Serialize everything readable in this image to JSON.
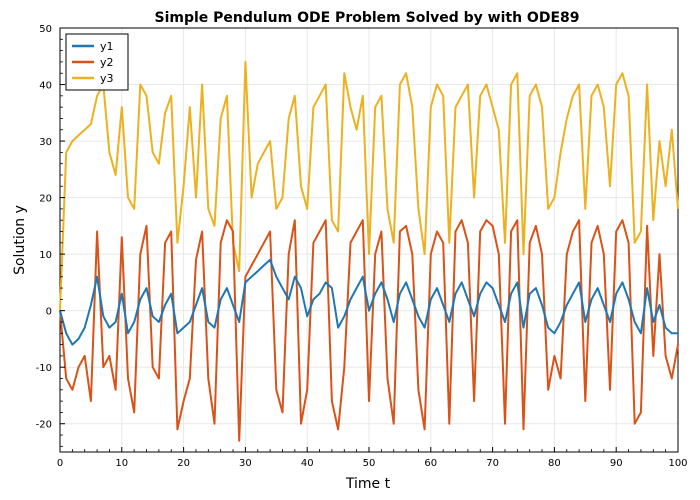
{
  "chart_data": {
    "type": "line",
    "title": "Simple Pendulum ODE Problem Solved by with ODE89",
    "xlabel": "Time t",
    "ylabel": "Solution y",
    "xlim": [
      0,
      100
    ],
    "ylim": [
      -25,
      50
    ],
    "xticks": [
      "0",
      "10",
      "20",
      "30",
      "40",
      "50",
      "60",
      "70",
      "80",
      "90",
      "100"
    ],
    "yticks": [
      "-20",
      "-10",
      "0",
      "10",
      "20",
      "30",
      "40",
      "50"
    ],
    "grid": true,
    "legend_position": "top-left",
    "colors": {
      "y1": "#1f77b4",
      "y2": "#d95319",
      "y3": "#edb120"
    },
    "series": [
      {
        "name": "y1",
        "x": [
          0,
          1,
          2,
          3,
          4,
          5,
          6,
          7,
          8,
          9,
          10,
          11,
          12,
          13,
          14,
          15,
          16,
          17,
          18,
          19,
          20,
          21,
          22,
          23,
          24,
          25,
          26,
          27,
          28,
          29,
          30,
          31,
          32,
          33,
          34,
          35,
          36,
          37,
          38,
          39,
          40,
          41,
          42,
          43,
          44,
          45,
          46,
          47,
          48,
          49,
          50,
          51,
          52,
          53,
          54,
          55,
          56,
          57,
          58,
          59,
          60,
          61,
          62,
          63,
          64,
          65,
          66,
          67,
          68,
          69,
          70,
          71,
          72,
          73,
          74,
          75,
          76,
          77,
          78,
          79,
          80,
          81,
          82,
          83,
          84,
          85,
          86,
          87,
          88,
          89,
          90,
          91,
          92,
          93,
          94,
          95,
          96,
          97,
          98,
          99,
          100
        ],
        "y": [
          0,
          -4,
          -6,
          -5,
          -3,
          1,
          6,
          -1,
          -3,
          -2,
          3,
          -4,
          -2,
          2,
          4,
          -1,
          -2,
          1,
          3,
          -4,
          -3,
          -2,
          1,
          4,
          -2,
          -3,
          2,
          4,
          1,
          -2,
          5,
          6,
          7,
          8,
          9,
          6,
          4,
          2,
          6,
          4,
          -1,
          2,
          3,
          5,
          4,
          -3,
          -1,
          2,
          4,
          6,
          0,
          3,
          5,
          2,
          -2,
          3,
          5,
          2,
          -1,
          -3,
          2,
          4,
          1,
          -2,
          3,
          5,
          2,
          -1,
          3,
          5,
          4,
          1,
          -2,
          3,
          5,
          -3,
          3,
          4,
          1,
          -3,
          -4,
          -2,
          1,
          3,
          5,
          -2,
          2,
          4,
          1,
          -2,
          3,
          5,
          2,
          -2,
          -4,
          4,
          -2,
          1,
          -3,
          -4,
          -4
        ]
      },
      {
        "name": "y2",
        "x": [
          0,
          1,
          2,
          3,
          4,
          5,
          6,
          7,
          8,
          9,
          10,
          11,
          12,
          13,
          14,
          15,
          16,
          17,
          18,
          19,
          20,
          21,
          22,
          23,
          24,
          25,
          26,
          27,
          28,
          29,
          30,
          31,
          32,
          33,
          34,
          35,
          36,
          37,
          38,
          39,
          40,
          41,
          42,
          43,
          44,
          45,
          46,
          47,
          48,
          49,
          50,
          51,
          52,
          53,
          54,
          55,
          56,
          57,
          58,
          59,
          60,
          61,
          62,
          63,
          64,
          65,
          66,
          67,
          68,
          69,
          70,
          71,
          72,
          73,
          74,
          75,
          76,
          77,
          78,
          79,
          80,
          81,
          82,
          83,
          84,
          85,
          86,
          87,
          88,
          89,
          90,
          91,
          92,
          93,
          94,
          95,
          96,
          97,
          98,
          99,
          100
        ],
        "y": [
          0,
          -12,
          -14,
          -10,
          -8,
          -16,
          14,
          -10,
          -8,
          -14,
          13,
          -12,
          -18,
          10,
          15,
          -10,
          -12,
          12,
          14,
          -21,
          -16,
          -12,
          9,
          14,
          -12,
          -20,
          12,
          16,
          14,
          -23,
          6,
          8,
          10,
          12,
          14,
          -14,
          -18,
          10,
          16,
          -20,
          -14,
          12,
          14,
          16,
          -16,
          -21,
          -10,
          12,
          14,
          16,
          -16,
          10,
          14,
          -12,
          -20,
          14,
          15,
          10,
          -14,
          -21,
          10,
          14,
          12,
          -20,
          14,
          16,
          12,
          -16,
          14,
          16,
          15,
          10,
          -20,
          14,
          16,
          -21,
          12,
          15,
          10,
          -14,
          -8,
          -12,
          10,
          14,
          16,
          -16,
          12,
          15,
          10,
          -14,
          14,
          16,
          12,
          -20,
          -18,
          15,
          -8,
          10,
          -8,
          -12,
          -6
        ]
      },
      {
        "name": "y3",
        "x": [
          0,
          1,
          2,
          3,
          4,
          5,
          6,
          7,
          8,
          9,
          10,
          11,
          12,
          13,
          14,
          15,
          16,
          17,
          18,
          19,
          20,
          21,
          22,
          23,
          24,
          25,
          26,
          27,
          28,
          29,
          30,
          31,
          32,
          33,
          34,
          35,
          36,
          37,
          38,
          39,
          40,
          41,
          42,
          43,
          44,
          45,
          46,
          47,
          48,
          49,
          50,
          51,
          52,
          53,
          54,
          55,
          56,
          57,
          58,
          59,
          60,
          61,
          62,
          63,
          64,
          65,
          66,
          67,
          68,
          69,
          70,
          71,
          72,
          73,
          74,
          75,
          76,
          77,
          78,
          79,
          80,
          81,
          82,
          83,
          84,
          85,
          86,
          87,
          88,
          89,
          90,
          91,
          92,
          93,
          94,
          95,
          96,
          97,
          98,
          99,
          100
        ],
        "y": [
          0,
          28,
          30,
          31,
          32,
          33,
          38,
          40,
          28,
          24,
          36,
          20,
          18,
          40,
          38,
          28,
          26,
          35,
          38,
          12,
          22,
          36,
          20,
          40,
          18,
          15,
          34,
          38,
          12,
          7,
          44,
          20,
          26,
          28,
          30,
          18,
          20,
          34,
          38,
          22,
          18,
          36,
          38,
          40,
          16,
          14,
          42,
          36,
          32,
          38,
          10,
          36,
          38,
          18,
          12,
          40,
          42,
          36,
          18,
          10,
          36,
          40,
          38,
          12,
          36,
          38,
          40,
          20,
          38,
          40,
          36,
          32,
          12,
          40,
          42,
          10,
          38,
          40,
          36,
          18,
          20,
          28,
          34,
          38,
          40,
          18,
          38,
          40,
          36,
          22,
          40,
          42,
          38,
          12,
          14,
          40,
          16,
          30,
          22,
          32,
          18
        ]
      }
    ]
  }
}
